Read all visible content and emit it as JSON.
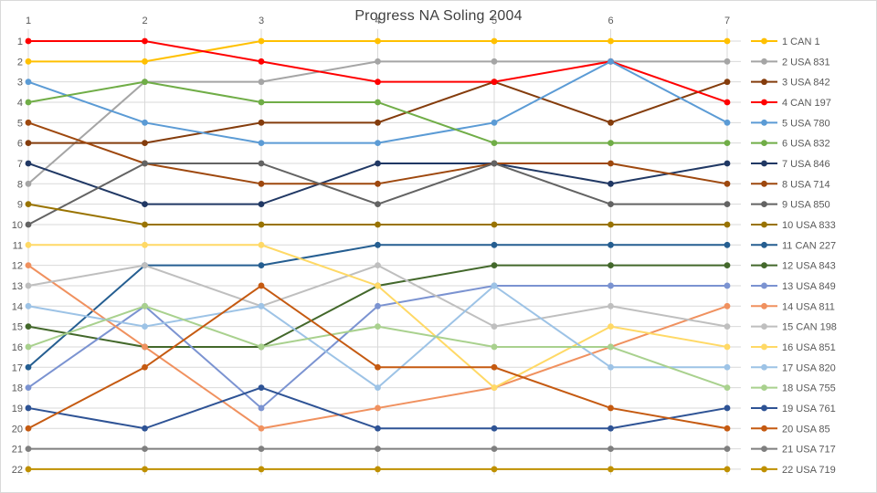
{
  "title": "Progress NA Soling 2004",
  "axes": {
    "x_ticks": [
      "1",
      "2",
      "3",
      "4",
      "5",
      "6",
      "7"
    ],
    "y_ticks": [
      "1",
      "2",
      "3",
      "4",
      "5",
      "6",
      "7",
      "8",
      "9",
      "10",
      "11",
      "12",
      "13",
      "14",
      "15",
      "16",
      "17",
      "18",
      "19",
      "20",
      "21",
      "22"
    ]
  },
  "colors": {
    "grid": "#d9d9d9",
    "axis_text": "#595959",
    "title_text": "#404040",
    "legend_text": "#595959"
  },
  "chart_data": {
    "type": "line",
    "title": "Progress NA Soling 2004",
    "xlabel": "",
    "ylabel": "",
    "x": [
      1,
      2,
      3,
      4,
      5,
      6,
      7
    ],
    "y_axis": {
      "min": 1,
      "max": 22,
      "inverted": true,
      "meaning": "rank"
    },
    "grid": true,
    "legend_position": "right",
    "marker": "circle",
    "series": [
      {
        "name": "1 CAN 1",
        "color": "#FFC000",
        "values": [
          2,
          2,
          1,
          1,
          1,
          1,
          1
        ]
      },
      {
        "name": "2 USA 831",
        "color": "#A5A5A5",
        "values": [
          8,
          3,
          3,
          2,
          2,
          2,
          2
        ]
      },
      {
        "name": "3 USA 842",
        "color": "#843C0C",
        "values": [
          6,
          6,
          5,
          5,
          3,
          5,
          3
        ]
      },
      {
        "name": "4 CAN 197",
        "color": "#FF0000",
        "values": [
          1,
          1,
          2,
          3,
          3,
          2,
          4
        ]
      },
      {
        "name": "5 USA 780",
        "color": "#5B9BD5",
        "values": [
          3,
          5,
          6,
          6,
          5,
          2,
          5
        ]
      },
      {
        "name": "6 USA 832",
        "color": "#70AD47",
        "values": [
          4,
          3,
          4,
          4,
          6,
          6,
          6
        ]
      },
      {
        "name": "7 USA 846",
        "color": "#203864",
        "values": [
          7,
          9,
          9,
          7,
          7,
          8,
          7
        ]
      },
      {
        "name": "8 USA 714",
        "color": "#9E480E",
        "values": [
          5,
          7,
          8,
          8,
          7,
          7,
          8
        ]
      },
      {
        "name": "9 USA 850",
        "color": "#636363",
        "values": [
          10,
          7,
          7,
          9,
          7,
          9,
          9
        ]
      },
      {
        "name": "10 USA 833",
        "color": "#997300",
        "values": [
          9,
          10,
          10,
          10,
          10,
          10,
          10
        ]
      },
      {
        "name": "11 CAN 227",
        "color": "#255E91",
        "values": [
          17,
          12,
          12,
          11,
          11,
          11,
          11
        ]
      },
      {
        "name": "12 USA 843",
        "color": "#43682B",
        "values": [
          15,
          16,
          16,
          13,
          12,
          12,
          12
        ]
      },
      {
        "name": "13 USA 849",
        "color": "#7B93D1",
        "values": [
          18,
          14,
          19,
          14,
          13,
          13,
          13
        ]
      },
      {
        "name": "14 USA 811",
        "color": "#F0915F",
        "values": [
          12,
          16,
          20,
          19,
          18,
          16,
          14
        ]
      },
      {
        "name": "15 CAN 198",
        "color": "#BFBFBF",
        "values": [
          13,
          12,
          14,
          12,
          15,
          14,
          15
        ]
      },
      {
        "name": "16 USA 851",
        "color": "#FFD966",
        "values": [
          11,
          11,
          11,
          13,
          18,
          15,
          16
        ]
      },
      {
        "name": "17 USA 820",
        "color": "#9DC3E6",
        "values": [
          14,
          15,
          14,
          18,
          13,
          17,
          17
        ]
      },
      {
        "name": "18 USA 755",
        "color": "#A9D18E",
        "values": [
          16,
          14,
          16,
          15,
          16,
          16,
          18
        ]
      },
      {
        "name": "19 USA 761",
        "color": "#2E5395",
        "values": [
          19,
          20,
          18,
          20,
          20,
          20,
          19
        ]
      },
      {
        "name": "20 USA 85",
        "color": "#C55A11",
        "values": [
          20,
          17,
          13,
          17,
          17,
          19,
          20
        ]
      },
      {
        "name": "21 USA 717",
        "color": "#7F7F7F",
        "values": [
          21,
          21,
          21,
          21,
          21,
          21,
          21
        ]
      },
      {
        "name": "22 USA 719",
        "color": "#BF9000",
        "values": [
          22,
          22,
          22,
          22,
          22,
          22,
          22
        ]
      }
    ]
  }
}
